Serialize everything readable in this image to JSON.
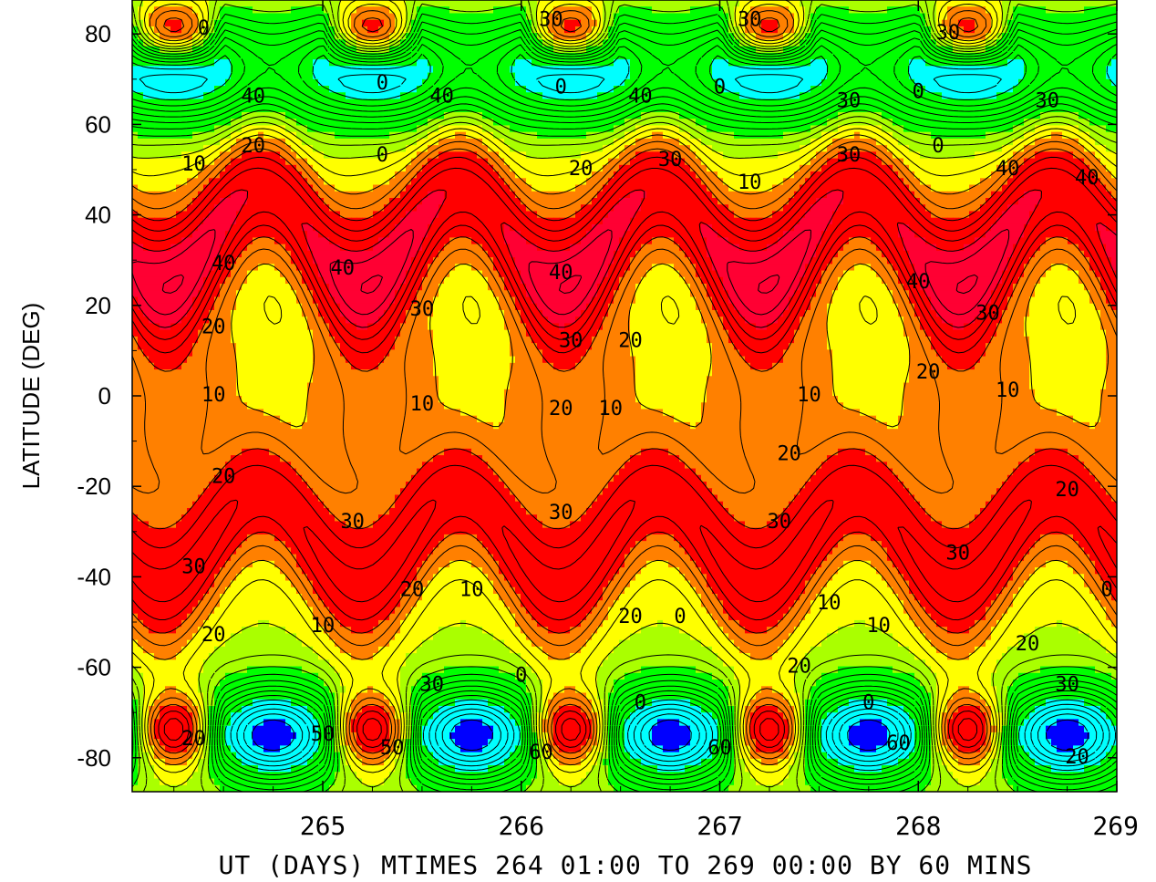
{
  "chart_data": {
    "type": "heatmap",
    "title": "",
    "xlabel": "UT (DAYS) MTIMES 264 01:00 TO 269 00:00 BY   60 MINS",
    "ylabel": "LATITUDE (DEG)",
    "xlim": [
      264.04,
      269.0
    ],
    "ylim": [
      -87.5,
      87.5
    ],
    "x_ticks": [
      265,
      266,
      267,
      268,
      269
    ],
    "y_ticks": [
      80,
      60,
      40,
      20,
      0,
      -20,
      -40,
      -60,
      -80
    ],
    "grid": false,
    "legend": "none",
    "contour_interval": 5,
    "color_levels": [
      {
        "min": -70,
        "max": -60,
        "color": "#0000ff"
      },
      {
        "min": -60,
        "max": -40,
        "color": "#00ffff"
      },
      {
        "min": -40,
        "max": -10,
        "color": "#00ff00"
      },
      {
        "min": -10,
        "max": 0,
        "color": "#aaff00"
      },
      {
        "min": 0,
        "max": 10,
        "color": "#ffff00"
      },
      {
        "min": 10,
        "max": 20,
        "color": "#ff8000"
      },
      {
        "min": 20,
        "max": 35,
        "color": "#ff0000"
      },
      {
        "min": 35,
        "max": 50,
        "color": "#ff0033"
      },
      {
        "min": 50,
        "max": 60,
        "color": "#ff00aa"
      },
      {
        "min": 60,
        "max": 80,
        "color": "#ff00ff"
      }
    ],
    "annotations": [
      {
        "text": "0",
        "x": 264.4,
        "y": 81
      },
      {
        "text": "30",
        "x": 266.15,
        "y": 83
      },
      {
        "text": "30",
        "x": 267.15,
        "y": 83
      },
      {
        "text": "30",
        "x": 268.15,
        "y": 80
      },
      {
        "text": "40",
        "x": 264.65,
        "y": 66
      },
      {
        "text": "0",
        "x": 265.3,
        "y": 69
      },
      {
        "text": "40",
        "x": 265.6,
        "y": 66
      },
      {
        "text": "0",
        "x": 266.2,
        "y": 68
      },
      {
        "text": "40",
        "x": 266.6,
        "y": 66
      },
      {
        "text": "0",
        "x": 267.0,
        "y": 68
      },
      {
        "text": "30",
        "x": 267.65,
        "y": 65
      },
      {
        "text": "0",
        "x": 268.0,
        "y": 67
      },
      {
        "text": "30",
        "x": 268.65,
        "y": 65
      },
      {
        "text": "20",
        "x": 264.65,
        "y": 55
      },
      {
        "text": "10",
        "x": 264.35,
        "y": 51
      },
      {
        "text": "0",
        "x": 265.3,
        "y": 53
      },
      {
        "text": "20",
        "x": 266.3,
        "y": 50
      },
      {
        "text": "30",
        "x": 266.75,
        "y": 52
      },
      {
        "text": "10",
        "x": 267.15,
        "y": 47
      },
      {
        "text": "30",
        "x": 267.65,
        "y": 53
      },
      {
        "text": "0",
        "x": 268.1,
        "y": 55
      },
      {
        "text": "40",
        "x": 268.45,
        "y": 50
      },
      {
        "text": "40",
        "x": 268.85,
        "y": 48
      },
      {
        "text": "40",
        "x": 264.5,
        "y": 29
      },
      {
        "text": "40",
        "x": 265.1,
        "y": 28
      },
      {
        "text": "40",
        "x": 266.2,
        "y": 27
      },
      {
        "text": "40",
        "x": 268.0,
        "y": 25
      },
      {
        "text": "30",
        "x": 265.5,
        "y": 19
      },
      {
        "text": "30",
        "x": 268.35,
        "y": 18
      },
      {
        "text": "20",
        "x": 264.45,
        "y": 15
      },
      {
        "text": "30",
        "x": 266.25,
        "y": 12
      },
      {
        "text": "20",
        "x": 266.55,
        "y": 12
      },
      {
        "text": "20",
        "x": 268.05,
        "y": 5
      },
      {
        "text": "10",
        "x": 264.45,
        "y": 0
      },
      {
        "text": "10",
        "x": 265.5,
        "y": -2
      },
      {
        "text": "20",
        "x": 266.2,
        "y": -3
      },
      {
        "text": "10",
        "x": 266.45,
        "y": -3
      },
      {
        "text": "10",
        "x": 267.45,
        "y": 0
      },
      {
        "text": "10",
        "x": 268.45,
        "y": 1
      },
      {
        "text": "20",
        "x": 267.35,
        "y": -13
      },
      {
        "text": "20",
        "x": 264.5,
        "y": -18
      },
      {
        "text": "20",
        "x": 268.75,
        "y": -21
      },
      {
        "text": "30",
        "x": 265.15,
        "y": -28
      },
      {
        "text": "30",
        "x": 266.2,
        "y": -26
      },
      {
        "text": "30",
        "x": 267.3,
        "y": -28
      },
      {
        "text": "30",
        "x": 268.2,
        "y": -35
      },
      {
        "text": "30",
        "x": 264.35,
        "y": -38
      },
      {
        "text": "20",
        "x": 265.45,
        "y": -43
      },
      {
        "text": "10",
        "x": 265.75,
        "y": -43
      },
      {
        "text": "0",
        "x": 268.95,
        "y": -43
      },
      {
        "text": "20",
        "x": 266.55,
        "y": -49
      },
      {
        "text": "0",
        "x": 266.8,
        "y": -49
      },
      {
        "text": "10",
        "x": 267.55,
        "y": -46
      },
      {
        "text": "10",
        "x": 265.0,
        "y": -51
      },
      {
        "text": "10",
        "x": 267.8,
        "y": -51
      },
      {
        "text": "20",
        "x": 264.45,
        "y": -53
      },
      {
        "text": "20",
        "x": 268.55,
        "y": -55
      },
      {
        "text": "20",
        "x": 267.4,
        "y": -60
      },
      {
        "text": "0",
        "x": 266.0,
        "y": -62
      },
      {
        "text": "30",
        "x": 265.55,
        "y": -64
      },
      {
        "text": "30",
        "x": 268.75,
        "y": -64
      },
      {
        "text": "0",
        "x": 266.6,
        "y": -68
      },
      {
        "text": "0",
        "x": 267.75,
        "y": -68
      },
      {
        "text": "50",
        "x": 265.0,
        "y": -75
      },
      {
        "text": "20",
        "x": 264.35,
        "y": -76
      },
      {
        "text": "50",
        "x": 265.35,
        "y": -78
      },
      {
        "text": "60",
        "x": 266.1,
        "y": -79
      },
      {
        "text": "60",
        "x": 267.0,
        "y": -78
      },
      {
        "text": "60",
        "x": 267.9,
        "y": -77
      },
      {
        "text": "20",
        "x": 268.8,
        "y": -80
      }
    ]
  }
}
